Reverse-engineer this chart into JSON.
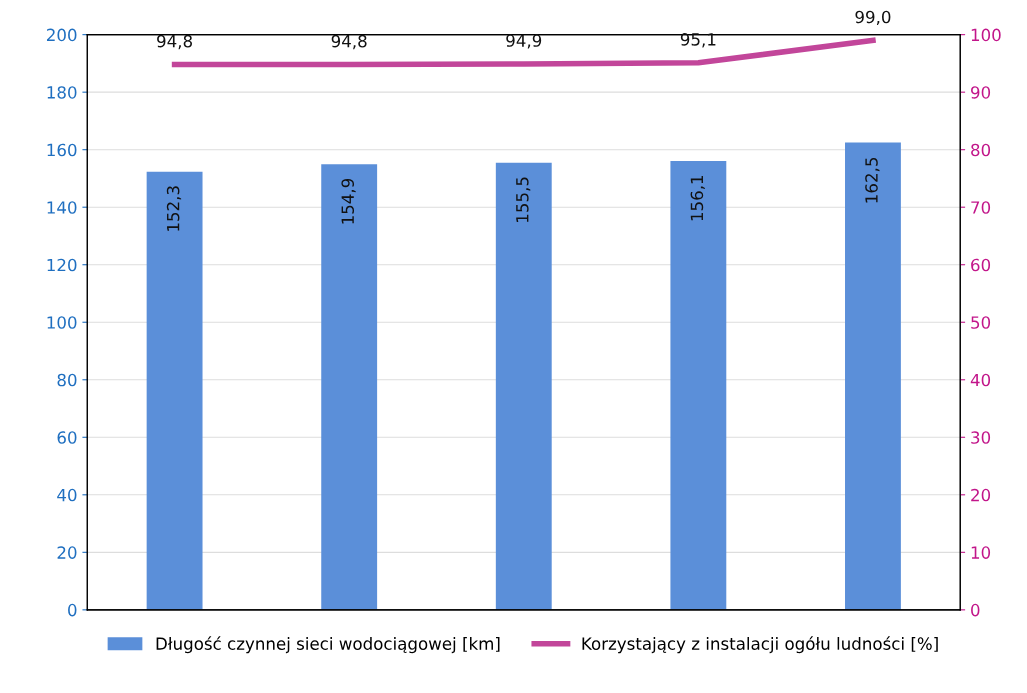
{
  "chart_data": {
    "type": "bar",
    "categories": [
      null,
      null,
      null,
      null,
      null
    ],
    "series": [
      {
        "name": "Długość czynnej sieci wodociągowej [km]",
        "color": "#5b8fd9",
        "values": [
          152.3,
          154.9,
          155.5,
          156.1,
          162.5
        ],
        "value_labels": [
          "152,3",
          "154,9",
          "155,5",
          "156,1",
          "162,5"
        ]
      },
      {
        "name": "Korzystający z instalacji ogółu ludności [%]",
        "type": "line",
        "axis": "y2",
        "color": "#c2469a",
        "values": [
          94.8,
          94.8,
          94.9,
          95.1,
          99.0
        ],
        "value_labels": [
          "94,8",
          "94,8",
          "94,9",
          "95,1",
          "99,0"
        ]
      }
    ],
    "ylim": [
      0,
      200
    ],
    "yticks": [
      0,
      20,
      40,
      60,
      80,
      100,
      120,
      140,
      160,
      180,
      200
    ],
    "y2lim": [
      0,
      100
    ],
    "y2ticks": [
      0,
      10,
      20,
      30,
      40,
      50,
      60,
      70,
      80,
      90,
      100
    ],
    "grid": "y",
    "legend": "bottom",
    "marker": "none",
    "line_style": "solid"
  }
}
